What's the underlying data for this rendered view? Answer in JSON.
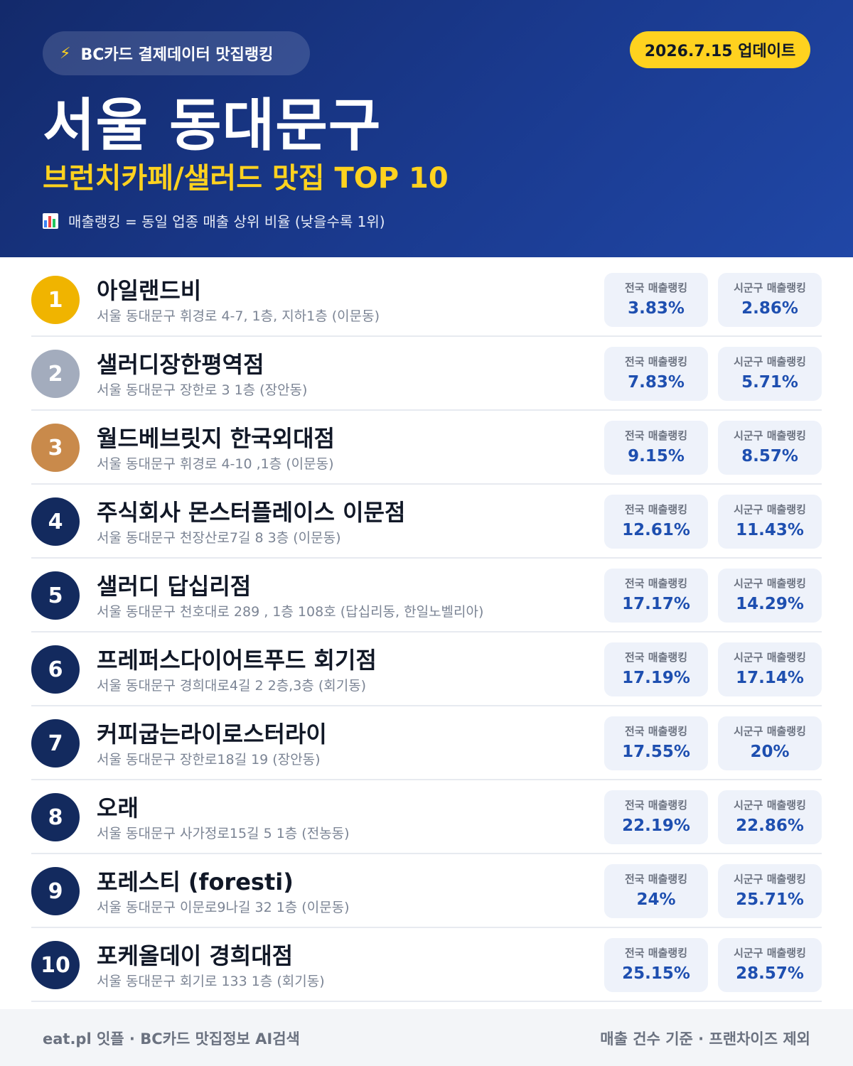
{
  "header": {
    "source_label": "BC카드 결제데이터 맛집랭킹",
    "source_icon": "lightning-bolt-icon",
    "update_label": "2026.7.15 업데이트",
    "region": "서울 동대문구",
    "subtitle": "브런치카페/샐러드 맛집 TOP 10",
    "legend_icon": "bar-chart-icon",
    "legend": "매출랭킹 = 동일 업종 매출 상위 비율 (낮을수록 1위)"
  },
  "colors": {
    "header_bg": "#1a3a8f",
    "accent_yellow": "#ffd21f",
    "gold": "#f0b400",
    "silver": "#a3acbd",
    "bronze": "#c98a4b",
    "navy": "#132a5e",
    "value_blue": "#1e4fb0"
  },
  "list": {
    "national_label": "전국 매출랭킹",
    "local_label": "시군구 매출랭킹",
    "items": [
      {
        "rank": "1",
        "name": "아일랜드비",
        "address": "서울 동대문구 휘경로 4-7, 1층, 지하1층 (이문동)",
        "national": "3.83%",
        "local": "2.86%"
      },
      {
        "rank": "2",
        "name": "샐러디장한평역점",
        "address": "서울 동대문구 장한로 3 1층 (장안동)",
        "national": "7.83%",
        "local": "5.71%"
      },
      {
        "rank": "3",
        "name": "월드베브릿지 한국외대점",
        "address": "서울 동대문구 휘경로 4-10 ,1층 (이문동)",
        "national": "9.15%",
        "local": "8.57%"
      },
      {
        "rank": "4",
        "name": "주식회사 몬스터플레이스 이문점",
        "address": "서울 동대문구 천장산로7길 8 3층 (이문동)",
        "national": "12.61%",
        "local": "11.43%"
      },
      {
        "rank": "5",
        "name": "샐러디 답십리점",
        "address": "서울 동대문구 천호대로 289 , 1층 108호 (답십리동, 한일노벨리아)",
        "national": "17.17%",
        "local": "14.29%"
      },
      {
        "rank": "6",
        "name": "프레퍼스다이어트푸드 회기점",
        "address": "서울 동대문구 경희대로4길 2 2층,3층 (회기동)",
        "national": "17.19%",
        "local": "17.14%"
      },
      {
        "rank": "7",
        "name": "커피굽는라이로스터라이",
        "address": "서울 동대문구 장한로18길 19 (장안동)",
        "national": "17.55%",
        "local": "20%"
      },
      {
        "rank": "8",
        "name": "오래",
        "address": "서울 동대문구 사가정로15길 5 1층 (전농동)",
        "national": "22.19%",
        "local": "22.86%"
      },
      {
        "rank": "9",
        "name": "포레스티 (foresti)",
        "address": "서울 동대문구 이문로9나길 32 1층 (이문동)",
        "national": "24%",
        "local": "25.71%"
      },
      {
        "rank": "10",
        "name": "포케올데이 경희대점",
        "address": "서울 동대문구 회기로 133 1층 (회기동)",
        "national": "25.15%",
        "local": "28.57%"
      }
    ]
  },
  "footer": {
    "left": "eat.pl 잇플 · BC카드 맛집정보 AI검색",
    "right": "매출 건수 기준 · 프랜차이즈 제외"
  }
}
